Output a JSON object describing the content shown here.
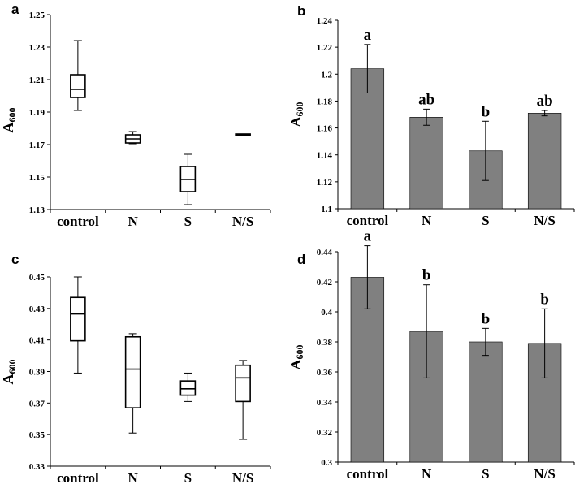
{
  "chart_data": [
    {
      "panel": "a",
      "type": "box",
      "ylabel": "A600",
      "ylabel_main": "A",
      "ylabel_sub": "600",
      "ylim": [
        1.13,
        1.25
      ],
      "yticks": [
        "1.13",
        "1.15",
        "1.17",
        "1.19",
        "1.21",
        "1.23",
        "1.25"
      ],
      "categories": [
        "control",
        "N",
        "S",
        "N/S"
      ],
      "boxes": [
        {
          "min": 1.191,
          "q1": 1.199,
          "median": 1.204,
          "q3": 1.213,
          "max": 1.234
        },
        {
          "min": 1.1705,
          "q1": 1.171,
          "median": 1.1735,
          "q3": 1.176,
          "max": 1.178
        },
        {
          "min": 1.133,
          "q1": 1.141,
          "median": 1.1485,
          "q3": 1.1565,
          "max": 1.164
        },
        {
          "min": 1.1755,
          "q1": 1.1755,
          "median": 1.176,
          "q3": 1.1765,
          "max": 1.1765
        }
      ]
    },
    {
      "panel": "b",
      "type": "bar",
      "ylabel": "A600",
      "ylabel_main": "A",
      "ylabel_sub": "600",
      "ylim": [
        1.1,
        1.24
      ],
      "yticks": [
        "1.1",
        "1.12",
        "1.14",
        "1.16",
        "1.18",
        "1.2",
        "1.22",
        "1.24"
      ],
      "categories": [
        "control",
        "N",
        "S",
        "N/S"
      ],
      "values": [
        1.204,
        1.168,
        1.143,
        1.171
      ],
      "errors": [
        0.018,
        0.006,
        0.022,
        0.002
      ],
      "labels": [
        "a",
        "ab",
        "b",
        "ab"
      ],
      "bar_color": "#808080"
    },
    {
      "panel": "c",
      "type": "box",
      "ylabel": "A600",
      "ylabel_main": "A",
      "ylabel_sub": "600",
      "ylim": [
        0.33,
        0.45
      ],
      "yticks": [
        "0.33",
        "0.35",
        "0.37",
        "0.39",
        "0.41",
        "0.43",
        "0.45"
      ],
      "categories": [
        "control",
        "N",
        "S",
        "N/S"
      ],
      "boxes": [
        {
          "min": 0.389,
          "q1": 0.4095,
          "median": 0.4265,
          "q3": 0.437,
          "max": 0.45
        },
        {
          "min": 0.351,
          "q1": 0.367,
          "median": 0.3915,
          "q3": 0.412,
          "max": 0.414
        },
        {
          "min": 0.371,
          "q1": 0.375,
          "median": 0.379,
          "q3": 0.384,
          "max": 0.389
        },
        {
          "min": 0.347,
          "q1": 0.371,
          "median": 0.386,
          "q3": 0.394,
          "max": 0.397
        }
      ]
    },
    {
      "panel": "d",
      "type": "bar",
      "ylabel": "A600",
      "ylabel_main": "A",
      "ylabel_sub": "600",
      "ylim": [
        0.3,
        0.44
      ],
      "yticks": [
        "0.3",
        "0.32",
        "0.34",
        "0.36",
        "0.38",
        "0.4",
        "0.42",
        "0.44"
      ],
      "categories": [
        "control",
        "N",
        "S",
        "N/S"
      ],
      "values": [
        0.423,
        0.387,
        0.38,
        0.379
      ],
      "errors": [
        0.021,
        0.031,
        0.009,
        0.023
      ],
      "labels": [
        "a",
        "b",
        "b",
        "b"
      ],
      "bar_color": "#808080"
    }
  ]
}
